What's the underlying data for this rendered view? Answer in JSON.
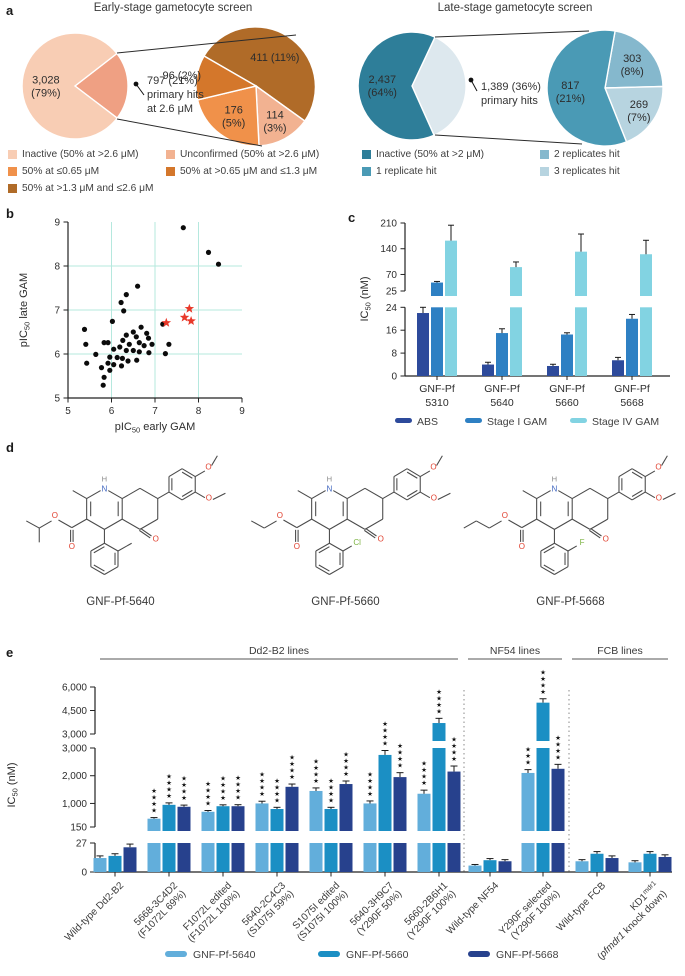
{
  "panel_labels": {
    "a": "a",
    "b": "b",
    "c": "c",
    "d": "d",
    "e": "e"
  },
  "panel_a": {
    "early": {
      "callout_lines": [
        "797 (21%)",
        "primary hits",
        "at 2.6 μM"
      ],
      "legend": [
        {
          "label": "Inactive (50% at >2.6 μM)",
          "color": "#f8cdb4"
        },
        {
          "label": "Unconfirmed (50% at >2.6 μM)",
          "color": "#f2b291"
        },
        {
          "label": "50% at ≤0.65 μM",
          "color": "#f0914a"
        },
        {
          "label": "50% at >0.65 μM and ≤1.3 μM",
          "color": "#d4772b"
        },
        {
          "label": "50% at >1.3 μM and ≤2.6 μM",
          "color": "#b06b28"
        }
      ]
    },
    "late": {
      "callout_lines": [
        "1,389 (36%)",
        "primary hits"
      ],
      "legend": [
        {
          "label": "Inactive (50% at >2 μM)",
          "color": "#2e7e99"
        },
        {
          "label": "2 replicates hit",
          "color": "#85b8cd"
        },
        {
          "label": "1 replicate hit",
          "color": "#4a9ab5"
        },
        {
          "label": "3 replicates hit",
          "color": "#b7d4e0"
        }
      ]
    }
  },
  "panel_d": {
    "compounds": [
      {
        "name": "GNF-Pf-5640",
        "ester": "isopropyl",
        "ortho_substituent": "CH3"
      },
      {
        "name": "GNF-Pf-5660",
        "ester": "ethyl",
        "ortho_substituent": "Cl"
      },
      {
        "name": "GNF-Pf-5668",
        "ester": "propyl",
        "ortho_substituent": "F"
      }
    ]
  },
  "chart_data": [
    {
      "id": "pie-early-overview",
      "type": "pie",
      "title": "Early-stage gametocyte screen",
      "slices": [
        {
          "label": "Primary hits at 2.6 μM",
          "value": 797,
          "pct": "21%",
          "color": "#efa083",
          "label_lines": null
        },
        {
          "label": "Inactive (50% at >2.6 μM)",
          "value": 3028,
          "pct": "79%",
          "color": "#f8cdb4",
          "label_lines": [
            "3,028",
            "(79%)"
          ]
        }
      ]
    },
    {
      "id": "pie-early-hits",
      "type": "pie",
      "title": "",
      "slices": [
        {
          "label": "50% at >1.3 μM and ≤2.6 μM",
          "value": 411,
          "pct": "11%",
          "color": "#b06b28",
          "label_lines": [
            "411 (11%)"
          ]
        },
        {
          "label": "Unconfirmed (50% at >2.6 μM)",
          "value": 114,
          "pct": "3%",
          "color": "#f2b291",
          "label_lines": [
            "114",
            "(3%)"
          ]
        },
        {
          "label": "50% at ≤0.65 μM",
          "value": 176,
          "pct": "5%",
          "color": "#f0914a",
          "label_lines": [
            "176",
            "(5%)"
          ]
        },
        {
          "label": "50% at >0.65 μM and ≤1.3 μM",
          "value": 96,
          "pct": "2%",
          "color": "#d4772b",
          "label_lines": [
            "96 (2%)"
          ]
        }
      ]
    },
    {
      "id": "pie-late-overview",
      "type": "pie",
      "title": "Late-stage gametocyte screen",
      "slices": [
        {
          "label": "Primary hits",
          "value": 1389,
          "pct": "36%",
          "color": "#dde8ee",
          "label_lines": null
        },
        {
          "label": "Inactive (50% at >2 μM)",
          "value": 2437,
          "pct": "64%",
          "color": "#2e7e99",
          "label_lines": [
            "2,437",
            "(64%)"
          ]
        }
      ]
    },
    {
      "id": "pie-late-hits",
      "type": "pie",
      "title": "",
      "slices": [
        {
          "label": "2 replicates hit",
          "value": 303,
          "pct": "8%",
          "color": "#85b8cd",
          "label_lines": [
            "303",
            "(8%)"
          ]
        },
        {
          "label": "3 replicates hit",
          "value": 269,
          "pct": "7%",
          "color": "#b7d4e0",
          "label_lines": [
            "269",
            "(7%)"
          ]
        },
        {
          "label": "1 replicate hit",
          "value": 817,
          "pct": "21%",
          "color": "#4a9ab5",
          "label_lines": [
            "817",
            "(21%)"
          ]
        }
      ]
    },
    {
      "id": "scatter-gam",
      "type": "scatter",
      "xlabel": {
        "prefix": "pIC",
        "sub": "50",
        "suffix": " early GAM"
      },
      "ylabel": {
        "prefix": "pIC",
        "sub": "50",
        "suffix": " late GAM"
      },
      "xlim": [
        5,
        9
      ],
      "ylim": [
        5,
        9
      ],
      "xticks": [
        5,
        6,
        7,
        8,
        9
      ],
      "yticks": [
        5,
        6,
        7,
        8,
        9
      ],
      "grid": true,
      "grid_color": "#b5e8de",
      "point_color": "#0b0b0b",
      "highlight_color": "#e8392a",
      "points": [
        [
          7.65,
          8.87
        ],
        [
          8.23,
          8.31
        ],
        [
          8.46,
          8.04
        ],
        [
          6.6,
          7.54
        ],
        [
          6.34,
          7.35
        ],
        [
          6.22,
          7.17
        ],
        [
          6.28,
          6.98
        ],
        [
          7.18,
          6.68
        ],
        [
          6.02,
          6.74
        ],
        [
          5.38,
          6.56
        ],
        [
          6.68,
          6.61
        ],
        [
          6.5,
          6.5
        ],
        [
          6.81,
          6.47
        ],
        [
          6.34,
          6.43
        ],
        [
          6.57,
          6.39
        ],
        [
          6.85,
          6.36
        ],
        [
          5.83,
          6.26
        ],
        [
          5.92,
          6.26
        ],
        [
          5.41,
          6.22
        ],
        [
          6.26,
          6.31
        ],
        [
          6.41,
          6.22
        ],
        [
          6.64,
          6.26
        ],
        [
          6.75,
          6.19
        ],
        [
          6.93,
          6.22
        ],
        [
          7.32,
          6.22
        ],
        [
          6.19,
          6.16
        ],
        [
          6.05,
          6.11
        ],
        [
          6.34,
          6.08
        ],
        [
          6.5,
          6.08
        ],
        [
          6.64,
          6.05
        ],
        [
          6.86,
          6.03
        ],
        [
          7.24,
          6.01
        ],
        [
          5.64,
          5.99
        ],
        [
          5.96,
          5.93
        ],
        [
          6.13,
          5.92
        ],
        [
          6.25,
          5.9
        ],
        [
          6.38,
          5.84
        ],
        [
          6.58,
          5.86
        ],
        [
          5.92,
          5.79
        ],
        [
          6.05,
          5.76
        ],
        [
          6.23,
          5.73
        ],
        [
          5.43,
          5.79
        ],
        [
          5.77,
          5.69
        ],
        [
          5.96,
          5.63
        ],
        [
          5.83,
          5.47
        ],
        [
          5.81,
          5.29
        ]
      ],
      "highlighted_points": [
        [
          7.26,
          6.71
        ],
        [
          7.68,
          6.83
        ],
        [
          7.79,
          7.03
        ],
        [
          7.83,
          6.75
        ]
      ]
    },
    {
      "id": "bar-ic50-stages",
      "type": "bar",
      "ylabel": {
        "prefix": "IC",
        "sub": "50",
        "suffix": " (nM)"
      },
      "axis_segments": [
        {
          "ticks": [
            0,
            8,
            16,
            24
          ]
        },
        {
          "ticks": [
            25,
            70,
            140,
            210
          ]
        }
      ],
      "categories": [
        [
          "GNF-Pf",
          "5310"
        ],
        [
          "GNF-Pf",
          "5640"
        ],
        [
          "GNF-Pf",
          "5660"
        ],
        [
          "GNF-Pf",
          "5668"
        ]
      ],
      "series": [
        {
          "name": "ABS",
          "color": "#2d4a9b",
          "values": [
            22,
            4,
            3.5,
            5.5
          ],
          "errors": [
            2,
            0.8,
            0.6,
            1
          ]
        },
        {
          "name": "Stage I GAM",
          "color": "#2e80c3",
          "values": [
            48,
            15,
            14.5,
            20
          ],
          "errors": [
            3,
            1.5,
            0.6,
            1.5
          ]
        },
        {
          "name": "Stage IV GAM",
          "color": "#82d3e2",
          "values": [
            162,
            90,
            132,
            125
          ],
          "errors": [
            42,
            14,
            48,
            38
          ]
        }
      ]
    },
    {
      "id": "bar-ic50-lines",
      "type": "bar",
      "ylabel": {
        "prefix": "IC",
        "sub": "50",
        "suffix": " (nM)"
      },
      "axis_segments": [
        {
          "ticks": [
            "0",
            "27"
          ]
        },
        {
          "ticks": [
            "150",
            "1,000",
            "2,000",
            "3,000"
          ]
        },
        {
          "ticks": [
            "3,000",
            "4,500",
            "6,000"
          ]
        }
      ],
      "group_headers": [
        {
          "label": "Dd2-B2 lines"
        },
        {
          "label": "NF54 lines"
        },
        {
          "label": "FCB lines"
        }
      ],
      "categories": [
        [
          "Wild-type Dd2-B2"
        ],
        [
          "5668-3C4D2",
          "(F1072L 69%)"
        ],
        [
          "F1072L edited",
          "(F1072L 100%)"
        ],
        [
          "5640-2C4C3",
          "(S1075I 59%)"
        ],
        [
          "S1075I edited",
          "(S1075I 100%)"
        ],
        [
          "5640-3H9C7",
          "(Y290F 50%)"
        ],
        [
          "5660-2B6H1",
          "(Y290F 100%)"
        ],
        [
          "Wild-type NF54"
        ],
        [
          "Y290F selected",
          "(Y290F 100%)"
        ],
        [
          "Wild-type FCB"
        ],
        [
          "KD1^mdr1",
          "(*pfmdr1* knock down)"
        ]
      ],
      "series": [
        {
          "name": "GNF-Pf-5640",
          "color": "#62aedb",
          "values": [
            13,
            450,
            700,
            1000,
            1450,
            1000,
            1350,
            6,
            2100,
            10,
            9
          ],
          "errors": [
            2,
            40,
            45,
            80,
            110,
            90,
            130,
            1,
            120,
            1.5,
            1.5
          ],
          "stars": [
            0,
            4,
            4,
            4,
            4,
            4,
            4,
            0,
            3,
            0,
            0
          ]
        },
        {
          "name": "GNF-Pf-5660",
          "color": "#1b8fc4",
          "values": [
            15,
            950,
            900,
            800,
            800,
            2750,
            3700,
            11,
            5000,
            17,
            17
          ],
          "errors": [
            2,
            70,
            50,
            60,
            60,
            160,
            300,
            1.5,
            250,
            2,
            2
          ],
          "stars": [
            0,
            4,
            4,
            4,
            4,
            4,
            4,
            0,
            4,
            0,
            0
          ]
        },
        {
          "name": "GNF-Pf-5668",
          "color": "#27418d",
          "values": [
            23,
            880,
            900,
            1600,
            1700,
            1950,
            2150,
            10,
            2250,
            13,
            14
          ],
          "errors": [
            3,
            60,
            55,
            100,
            110,
            160,
            200,
            1.5,
            160,
            2,
            2
          ],
          "stars": [
            0,
            4,
            4,
            4,
            4,
            4,
            4,
            0,
            4,
            0,
            0
          ]
        }
      ]
    }
  ]
}
